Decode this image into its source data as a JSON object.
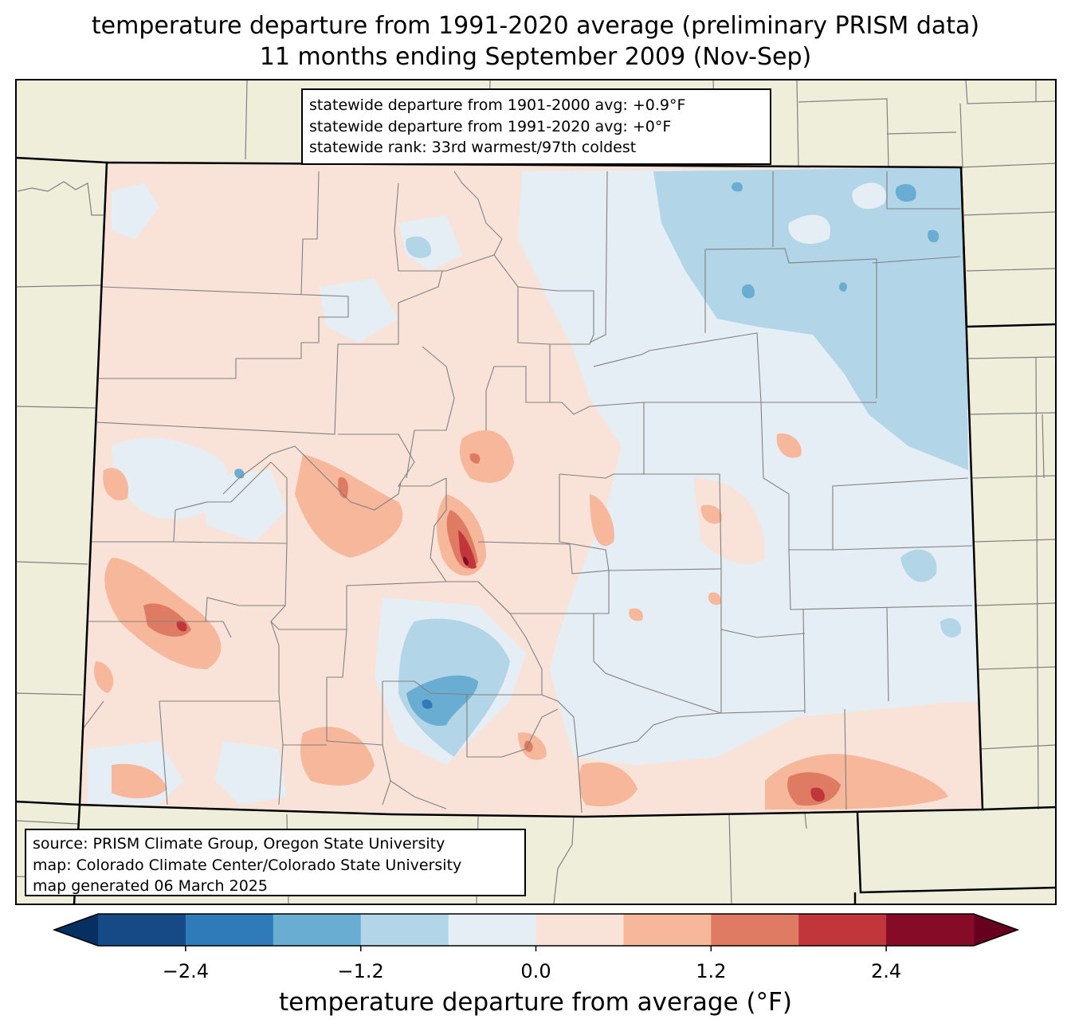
{
  "title_line1": "temperature departure from 1991-2020 average (preliminary PRISM data)",
  "title_line2": "11 months ending September 2009 (Nov-Sep)",
  "stats": {
    "line1": "statewide departure from 1901-2000 avg: +0.9°F",
    "line2": "statewide departure from 1991-2020 avg: +0°F",
    "line3": "statewide rank: 33rd warmest/97th coldest"
  },
  "credits": {
    "line1": "source: PRISM Climate Group, Oregon State University",
    "line2": "map: Colorado Climate Center/Colorado State University",
    "line3": "map generated 06 March 2025"
  },
  "colorbar": {
    "label": "temperature departure from average (°F)",
    "ticks": [
      "−2.4",
      "−1.2",
      "0.0",
      "1.2",
      "2.4"
    ],
    "tick_values": [
      -2.4,
      -1.2,
      0.0,
      1.2,
      2.4
    ],
    "bins": [
      -3.0,
      -2.4,
      -1.8,
      -1.2,
      -0.6,
      0.0,
      0.6,
      1.2,
      1.8,
      2.4,
      3.0
    ],
    "colors": [
      "#053061",
      "#154a87",
      "#2f7ab8",
      "#6aadd2",
      "#b2d5e7",
      "#e5eef5",
      "#f9e3d9",
      "#f6b79b",
      "#e07b63",
      "#c1363a",
      "#860b26",
      "#67001f"
    ]
  },
  "colors": {
    "land_background": "#efeeda",
    "state_border": "#000000",
    "county_line": "#808080"
  }
}
